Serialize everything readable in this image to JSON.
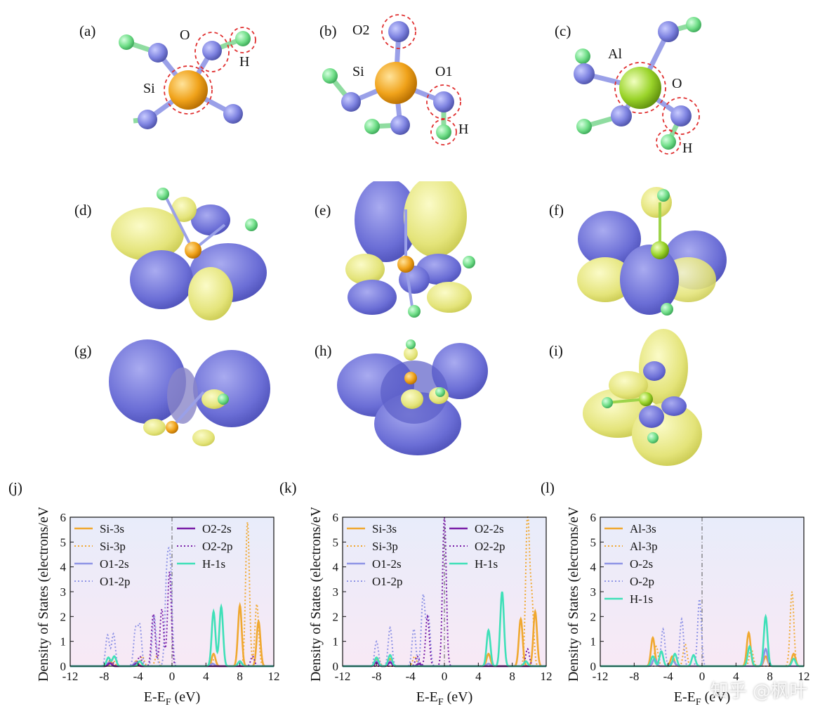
{
  "panels": {
    "a": "(a)",
    "b": "(b)",
    "c": "(c)",
    "d": "(d)",
    "e": "(e)",
    "f": "(f)",
    "g": "(g)",
    "h": "(h)",
    "i": "(i)",
    "j": "(j)",
    "k": "(k)",
    "l": "(l)"
  },
  "atoms": {
    "a": {
      "o": "O",
      "h": "H",
      "si": "Si"
    },
    "b": {
      "o2": "O2",
      "si": "Si",
      "o1": "O1",
      "h": "H"
    },
    "c": {
      "al": "Al",
      "o": "O",
      "h": "H"
    }
  },
  "colors": {
    "si": "#f2a61e",
    "al": "#9bd42a",
    "o": "#7f84e0",
    "h": "#74e089",
    "lobe_blue": "#6f72d8",
    "lobe_yellow": "#e4e47a",
    "bg_top": "#e8ecfa",
    "bg_bottom": "#f8e9f5"
  },
  "watermark": "知乎 @枫叶",
  "chart_data": [
    {
      "id": "j",
      "type": "line",
      "xlabel": "E-E_F (eV)",
      "ylabel": "Density of States (electrons/eV)",
      "xlim": [
        -12,
        12
      ],
      "ylim": [
        0,
        6
      ],
      "xticks": [
        "-12",
        "-8",
        "-4",
        "0",
        "4",
        "8",
        "12"
      ],
      "yticks": [
        "0",
        "1",
        "2",
        "3",
        "4",
        "5",
        "6"
      ],
      "fermi_line": 0,
      "legend": [
        {
          "name": "Si-3s",
          "color": "#f0a830",
          "dash": false
        },
        {
          "name": "Si-3p",
          "color": "#f0a830",
          "dash": true
        },
        {
          "name": "O1-2s",
          "color": "#8f94e6",
          "dash": false
        },
        {
          "name": "O1-2p",
          "color": "#8f94e6",
          "dash": true
        },
        {
          "name": "O2-2s",
          "color": "#7a1fa8",
          "dash": false
        },
        {
          "name": "O2-2p",
          "color": "#7a1fa8",
          "dash": true
        },
        {
          "name": "H-1s",
          "color": "#3fe0b8",
          "dash": false
        }
      ],
      "series": [
        {
          "name": "Si-3s",
          "peaks": [
            [
              -7.3,
              0.2
            ],
            [
              -4.2,
              0.2
            ],
            [
              4.9,
              0.5
            ],
            [
              8.0,
              2.45
            ],
            [
              10.2,
              1.8
            ]
          ]
        },
        {
          "name": "Si-3p",
          "peaks": [
            [
              -7.0,
              0.3
            ],
            [
              -3.5,
              0.4
            ],
            [
              -1.8,
              0.4
            ],
            [
              5.0,
              0.3
            ],
            [
              8.9,
              5.8
            ],
            [
              10.0,
              2.5
            ]
          ]
        },
        {
          "name": "O1-2s",
          "peaks": [
            [
              -7.4,
              0.15
            ],
            [
              -4.3,
              0.15
            ],
            [
              4.8,
              0.1
            ],
            [
              8.0,
              0.2
            ]
          ]
        },
        {
          "name": "O1-2p",
          "peaks": [
            [
              -7.6,
              1.25
            ],
            [
              -6.9,
              1.3
            ],
            [
              -4.3,
              1.45
            ],
            [
              -3.8,
              1.6
            ],
            [
              -2.1,
              2.05
            ],
            [
              -0.6,
              3.5
            ],
            [
              -0.2,
              3.7
            ]
          ]
        },
        {
          "name": "O2-2s",
          "peaks": [
            [
              -7.3,
              0.12
            ],
            [
              -4.2,
              0.1
            ]
          ]
        },
        {
          "name": "O2-2p",
          "peaks": [
            [
              -7.2,
              0.3
            ],
            [
              -3.8,
              0.4
            ],
            [
              -2.2,
              2.1
            ],
            [
              -1.2,
              2.3
            ],
            [
              -0.3,
              3.8
            ],
            [
              9.5,
              0.4
            ]
          ]
        },
        {
          "name": "H-1s",
          "peaks": [
            [
              -7.5,
              0.35
            ],
            [
              -6.8,
              0.4
            ],
            [
              -3.8,
              0.2
            ],
            [
              4.9,
              2.2
            ],
            [
              5.8,
              2.4
            ],
            [
              8.0,
              0.2
            ]
          ]
        }
      ]
    },
    {
      "id": "k",
      "type": "line",
      "xlabel": "E-E_F (eV)",
      "ylabel": "Density of States (electrons/eV)",
      "xlim": [
        -12,
        12
      ],
      "ylim": [
        0,
        6
      ],
      "xticks": [
        "-12",
        "-8",
        "-4",
        "0",
        "4",
        "8",
        "12"
      ],
      "yticks": [
        "0",
        "1",
        "2",
        "3",
        "4",
        "5",
        "6"
      ],
      "fermi_line": 0,
      "legend": [
        {
          "name": "Si-3s",
          "color": "#f0a830",
          "dash": false
        },
        {
          "name": "Si-3p",
          "color": "#f0a830",
          "dash": true
        },
        {
          "name": "O1-2s",
          "color": "#8f94e6",
          "dash": false
        },
        {
          "name": "O1-2p",
          "color": "#8f94e6",
          "dash": true
        },
        {
          "name": "O2-2s",
          "color": "#7a1fa8",
          "dash": false
        },
        {
          "name": "O2-2p",
          "color": "#7a1fa8",
          "dash": true
        },
        {
          "name": "H-1s",
          "color": "#3fe0b8",
          "dash": false
        }
      ],
      "series": [
        {
          "name": "Si-3s",
          "peaks": [
            [
              -8.0,
              0.3
            ],
            [
              -6.4,
              0.3
            ],
            [
              5.2,
              0.5
            ],
            [
              9.0,
              1.9
            ],
            [
              10.7,
              2.2
            ]
          ]
        },
        {
          "name": "Si-3p",
          "peaks": [
            [
              -7.8,
              0.3
            ],
            [
              -3.5,
              0.4
            ],
            [
              9.8,
              6.0
            ],
            [
              10.3,
              2.6
            ]
          ]
        },
        {
          "name": "O1-2s",
          "peaks": [
            [
              -8.0,
              0.2
            ],
            [
              -6.4,
              0.2
            ],
            [
              5.2,
              0.1
            ]
          ]
        },
        {
          "name": "O1-2p",
          "peaks": [
            [
              -8.0,
              1.0
            ],
            [
              -6.4,
              1.55
            ],
            [
              -3.6,
              1.5
            ],
            [
              -2.5,
              2.85
            ],
            [
              -1.9,
              2.0
            ]
          ]
        },
        {
          "name": "O2-2s",
          "peaks": [
            [
              -8.0,
              0.15
            ],
            [
              -6.4,
              0.15
            ],
            [
              -3.0,
              0.1
            ]
          ]
        },
        {
          "name": "O2-2p",
          "peaks": [
            [
              -3.2,
              0.4
            ],
            [
              -2.0,
              2.0
            ],
            [
              0.0,
              6.0
            ],
            [
              9.8,
              0.7
            ]
          ]
        },
        {
          "name": "H-1s",
          "peaks": [
            [
              -8.0,
              0.35
            ],
            [
              -6.4,
              0.45
            ],
            [
              5.2,
              1.45
            ],
            [
              6.8,
              3.0
            ],
            [
              9.6,
              0.2
            ]
          ]
        }
      ]
    },
    {
      "id": "l",
      "type": "line",
      "xlabel": "E-E_F (eV)",
      "ylabel": "Density of States (electrons/eV)",
      "xlim": [
        -12,
        12
      ],
      "ylim": [
        0,
        6
      ],
      "xticks": [
        "-12",
        "-8",
        "-4",
        "0",
        "4",
        "8",
        "12"
      ],
      "yticks": [
        "0",
        "1",
        "2",
        "3",
        "4",
        "5",
        "6"
      ],
      "fermi_line": 0,
      "legend": [
        {
          "name": "Al-3s",
          "color": "#f0a830",
          "dash": false
        },
        {
          "name": "Al-3p",
          "color": "#f0a830",
          "dash": true
        },
        {
          "name": "O-2s",
          "color": "#8f94e6",
          "dash": false
        },
        {
          "name": "O-2p",
          "color": "#8f94e6",
          "dash": true
        },
        {
          "name": "H-1s",
          "color": "#3fe0b8",
          "dash": false
        }
      ],
      "series": [
        {
          "name": "Al-3s",
          "peaks": [
            [
              -5.8,
              1.15
            ],
            [
              -3.5,
              0.4
            ],
            [
              5.5,
              1.35
            ],
            [
              7.5,
              0.4
            ],
            [
              10.8,
              0.5
            ]
          ]
        },
        {
          "name": "Al-3p",
          "peaks": [
            [
              -5.4,
              0.8
            ],
            [
              -2.0,
              0.9
            ],
            [
              5.8,
              0.7
            ],
            [
              10.6,
              3.0
            ]
          ]
        },
        {
          "name": "O-2s",
          "peaks": [
            [
              -5.6,
              0.3
            ],
            [
              -3.4,
              0.2
            ],
            [
              7.5,
              0.7
            ]
          ]
        },
        {
          "name": "O-2p",
          "peaks": [
            [
              -4.6,
              1.5
            ],
            [
              -2.4,
              1.9
            ],
            [
              -0.3,
              2.7
            ]
          ]
        },
        {
          "name": "H-1s",
          "peaks": [
            [
              -5.8,
              0.4
            ],
            [
              -4.8,
              0.6
            ],
            [
              -3.2,
              0.5
            ],
            [
              -1.0,
              0.45
            ],
            [
              5.6,
              0.8
            ],
            [
              7.5,
              2.0
            ],
            [
              10.8,
              0.3
            ]
          ]
        }
      ]
    }
  ]
}
